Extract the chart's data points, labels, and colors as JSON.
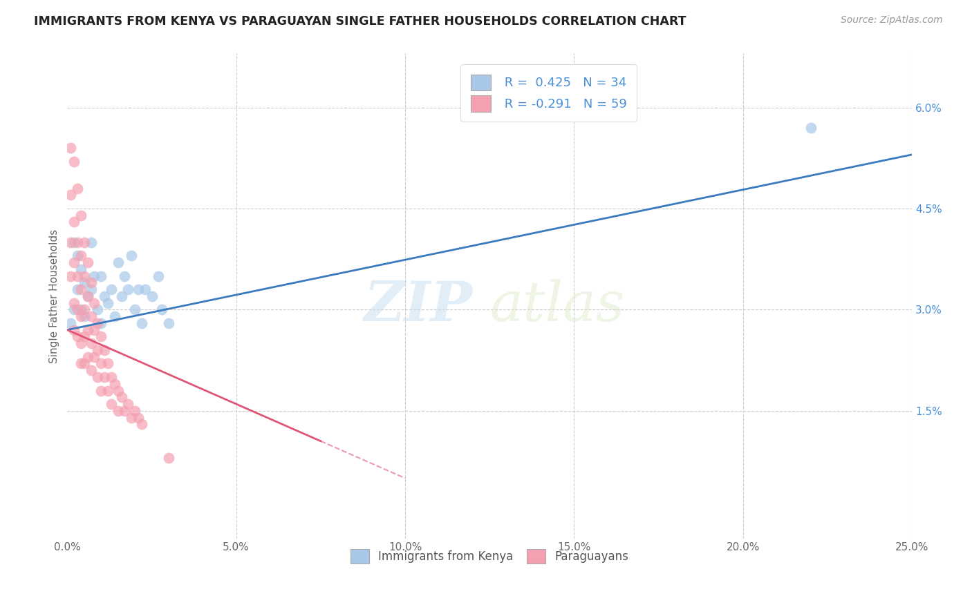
{
  "title": "IMMIGRANTS FROM KENYA VS PARAGUAYAN SINGLE FATHER HOUSEHOLDS CORRELATION CHART",
  "source": "Source: ZipAtlas.com",
  "ylabel": "Single Father Households",
  "xmin": 0.0,
  "xmax": 0.25,
  "ymin": -0.004,
  "ymax": 0.068,
  "yticks": [
    0.0,
    0.015,
    0.03,
    0.045,
    0.06
  ],
  "ytick_labels": [
    "",
    "1.5%",
    "3.0%",
    "4.5%",
    "6.0%"
  ],
  "xticks": [
    0.0,
    0.05,
    0.1,
    0.15,
    0.2,
    0.25
  ],
  "xtick_labels": [
    "0.0%",
    "5.0%",
    "10.0%",
    "15.0%",
    "20.0%",
    "25.0%"
  ],
  "R_blue": 0.425,
  "N_blue": 34,
  "R_pink": -0.291,
  "N_pink": 59,
  "blue_color": "#a8c8e8",
  "pink_color": "#f4a0b0",
  "blue_line_color": "#3a7abf",
  "pink_line_color": "#e05575",
  "watermark_zip": "ZIP",
  "watermark_atlas": "atlas",
  "legend_label_blue": "Immigrants from Kenya",
  "legend_label_pink": "Paraguayans",
  "blue_scatter_x": [
    0.001,
    0.002,
    0.002,
    0.003,
    0.003,
    0.004,
    0.004,
    0.005,
    0.005,
    0.006,
    0.007,
    0.007,
    0.008,
    0.009,
    0.01,
    0.01,
    0.011,
    0.012,
    0.013,
    0.014,
    0.015,
    0.016,
    0.017,
    0.018,
    0.019,
    0.02,
    0.021,
    0.022,
    0.023,
    0.025,
    0.027,
    0.028,
    0.03,
    0.22
  ],
  "blue_scatter_y": [
    0.028,
    0.04,
    0.03,
    0.038,
    0.033,
    0.036,
    0.03,
    0.034,
    0.029,
    0.032,
    0.04,
    0.033,
    0.035,
    0.03,
    0.035,
    0.028,
    0.032,
    0.031,
    0.033,
    0.029,
    0.037,
    0.032,
    0.035,
    0.033,
    0.038,
    0.03,
    0.033,
    0.028,
    0.033,
    0.032,
    0.035,
    0.03,
    0.028,
    0.057
  ],
  "pink_scatter_x": [
    0.001,
    0.001,
    0.001,
    0.001,
    0.002,
    0.002,
    0.002,
    0.002,
    0.002,
    0.003,
    0.003,
    0.003,
    0.003,
    0.003,
    0.004,
    0.004,
    0.004,
    0.004,
    0.004,
    0.004,
    0.005,
    0.005,
    0.005,
    0.005,
    0.005,
    0.006,
    0.006,
    0.006,
    0.006,
    0.007,
    0.007,
    0.007,
    0.007,
    0.008,
    0.008,
    0.008,
    0.009,
    0.009,
    0.009,
    0.01,
    0.01,
    0.01,
    0.011,
    0.011,
    0.012,
    0.012,
    0.013,
    0.013,
    0.014,
    0.015,
    0.015,
    0.016,
    0.017,
    0.018,
    0.019,
    0.02,
    0.021,
    0.022,
    0.03
  ],
  "pink_scatter_y": [
    0.054,
    0.047,
    0.04,
    0.035,
    0.052,
    0.043,
    0.037,
    0.031,
    0.027,
    0.048,
    0.04,
    0.035,
    0.03,
    0.026,
    0.044,
    0.038,
    0.033,
    0.029,
    0.025,
    0.022,
    0.04,
    0.035,
    0.03,
    0.026,
    0.022,
    0.037,
    0.032,
    0.027,
    0.023,
    0.034,
    0.029,
    0.025,
    0.021,
    0.031,
    0.027,
    0.023,
    0.028,
    0.024,
    0.02,
    0.026,
    0.022,
    0.018,
    0.024,
    0.02,
    0.022,
    0.018,
    0.02,
    0.016,
    0.019,
    0.018,
    0.015,
    0.017,
    0.015,
    0.016,
    0.014,
    0.015,
    0.014,
    0.013,
    0.008
  ],
  "blue_trendline_x": [
    0.0,
    0.25
  ],
  "blue_trendline_y": [
    0.027,
    0.053
  ],
  "pink_trendline_x": [
    0.0,
    0.1
  ],
  "pink_trendline_y": [
    0.027,
    0.005
  ]
}
